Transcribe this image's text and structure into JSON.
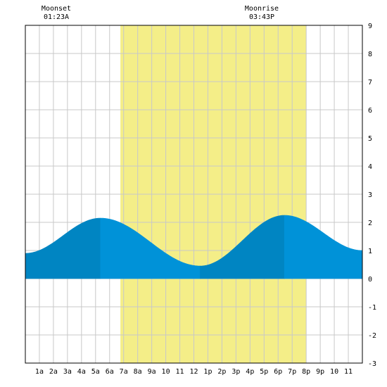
{
  "moon": {
    "moonset_label": "Moonset",
    "moonset_time": "01:23A",
    "moonset_hour": 1.383,
    "moonrise_label": "Moonrise",
    "moonrise_time": "03:43P",
    "moonrise_hour": 15.717
  },
  "chart_data": {
    "type": "area",
    "title": "",
    "xlabel": "",
    "ylabel": "",
    "xlim": [
      0,
      24
    ],
    "ylim": [
      -3,
      9
    ],
    "grid": true,
    "x_tick_labels": [
      "1a",
      "2a",
      "3a",
      "4a",
      "5a",
      "6a",
      "7a",
      "8a",
      "9a",
      "10",
      "11",
      "12",
      "1p",
      "2p",
      "3p",
      "4p",
      "5p",
      "6p",
      "7p",
      "8p",
      "9p",
      "10",
      "11"
    ],
    "y_tick_labels": [
      "9",
      "8",
      "7",
      "6",
      "5",
      "4",
      "3",
      "2",
      "1",
      "0",
      "-1",
      "-2",
      "-3"
    ],
    "daylight": {
      "start_hour": 6.77,
      "end_hour": 20.0
    },
    "tide_extremes": [
      {
        "kind": "low",
        "hour": 0.0,
        "value": 0.9
      },
      {
        "kind": "high",
        "hour": 5.35,
        "value": 2.15
      },
      {
        "kind": "low",
        "hour": 12.45,
        "value": 0.45
      },
      {
        "kind": "high",
        "hour": 18.45,
        "value": 2.25
      },
      {
        "kind": "low",
        "hour": 24.0,
        "value": 1.0
      }
    ],
    "series": [
      {
        "x": [
          0,
          1,
          2,
          3,
          4,
          5,
          5.35,
          6,
          7,
          8,
          9,
          10,
          11,
          12,
          12.45,
          13,
          14,
          15,
          16,
          17,
          18,
          18.45,
          19,
          20,
          21,
          22,
          23,
          24
        ],
        "values": [
          0.9,
          1.0,
          1.27,
          1.62,
          1.93,
          2.12,
          2.15,
          2.1,
          1.88,
          1.55,
          1.2,
          0.85,
          0.6,
          0.47,
          0.45,
          0.5,
          0.77,
          1.21,
          1.69,
          2.05,
          2.23,
          2.25,
          2.21,
          2.0,
          1.69,
          1.38,
          1.14,
          1.0
        ]
      }
    ],
    "colors": {
      "water": "#0092d8",
      "water_rising": "#0085c2",
      "daylight": "#f4ee88",
      "grid": "#c8c8c8",
      "frame": "#000000"
    }
  }
}
